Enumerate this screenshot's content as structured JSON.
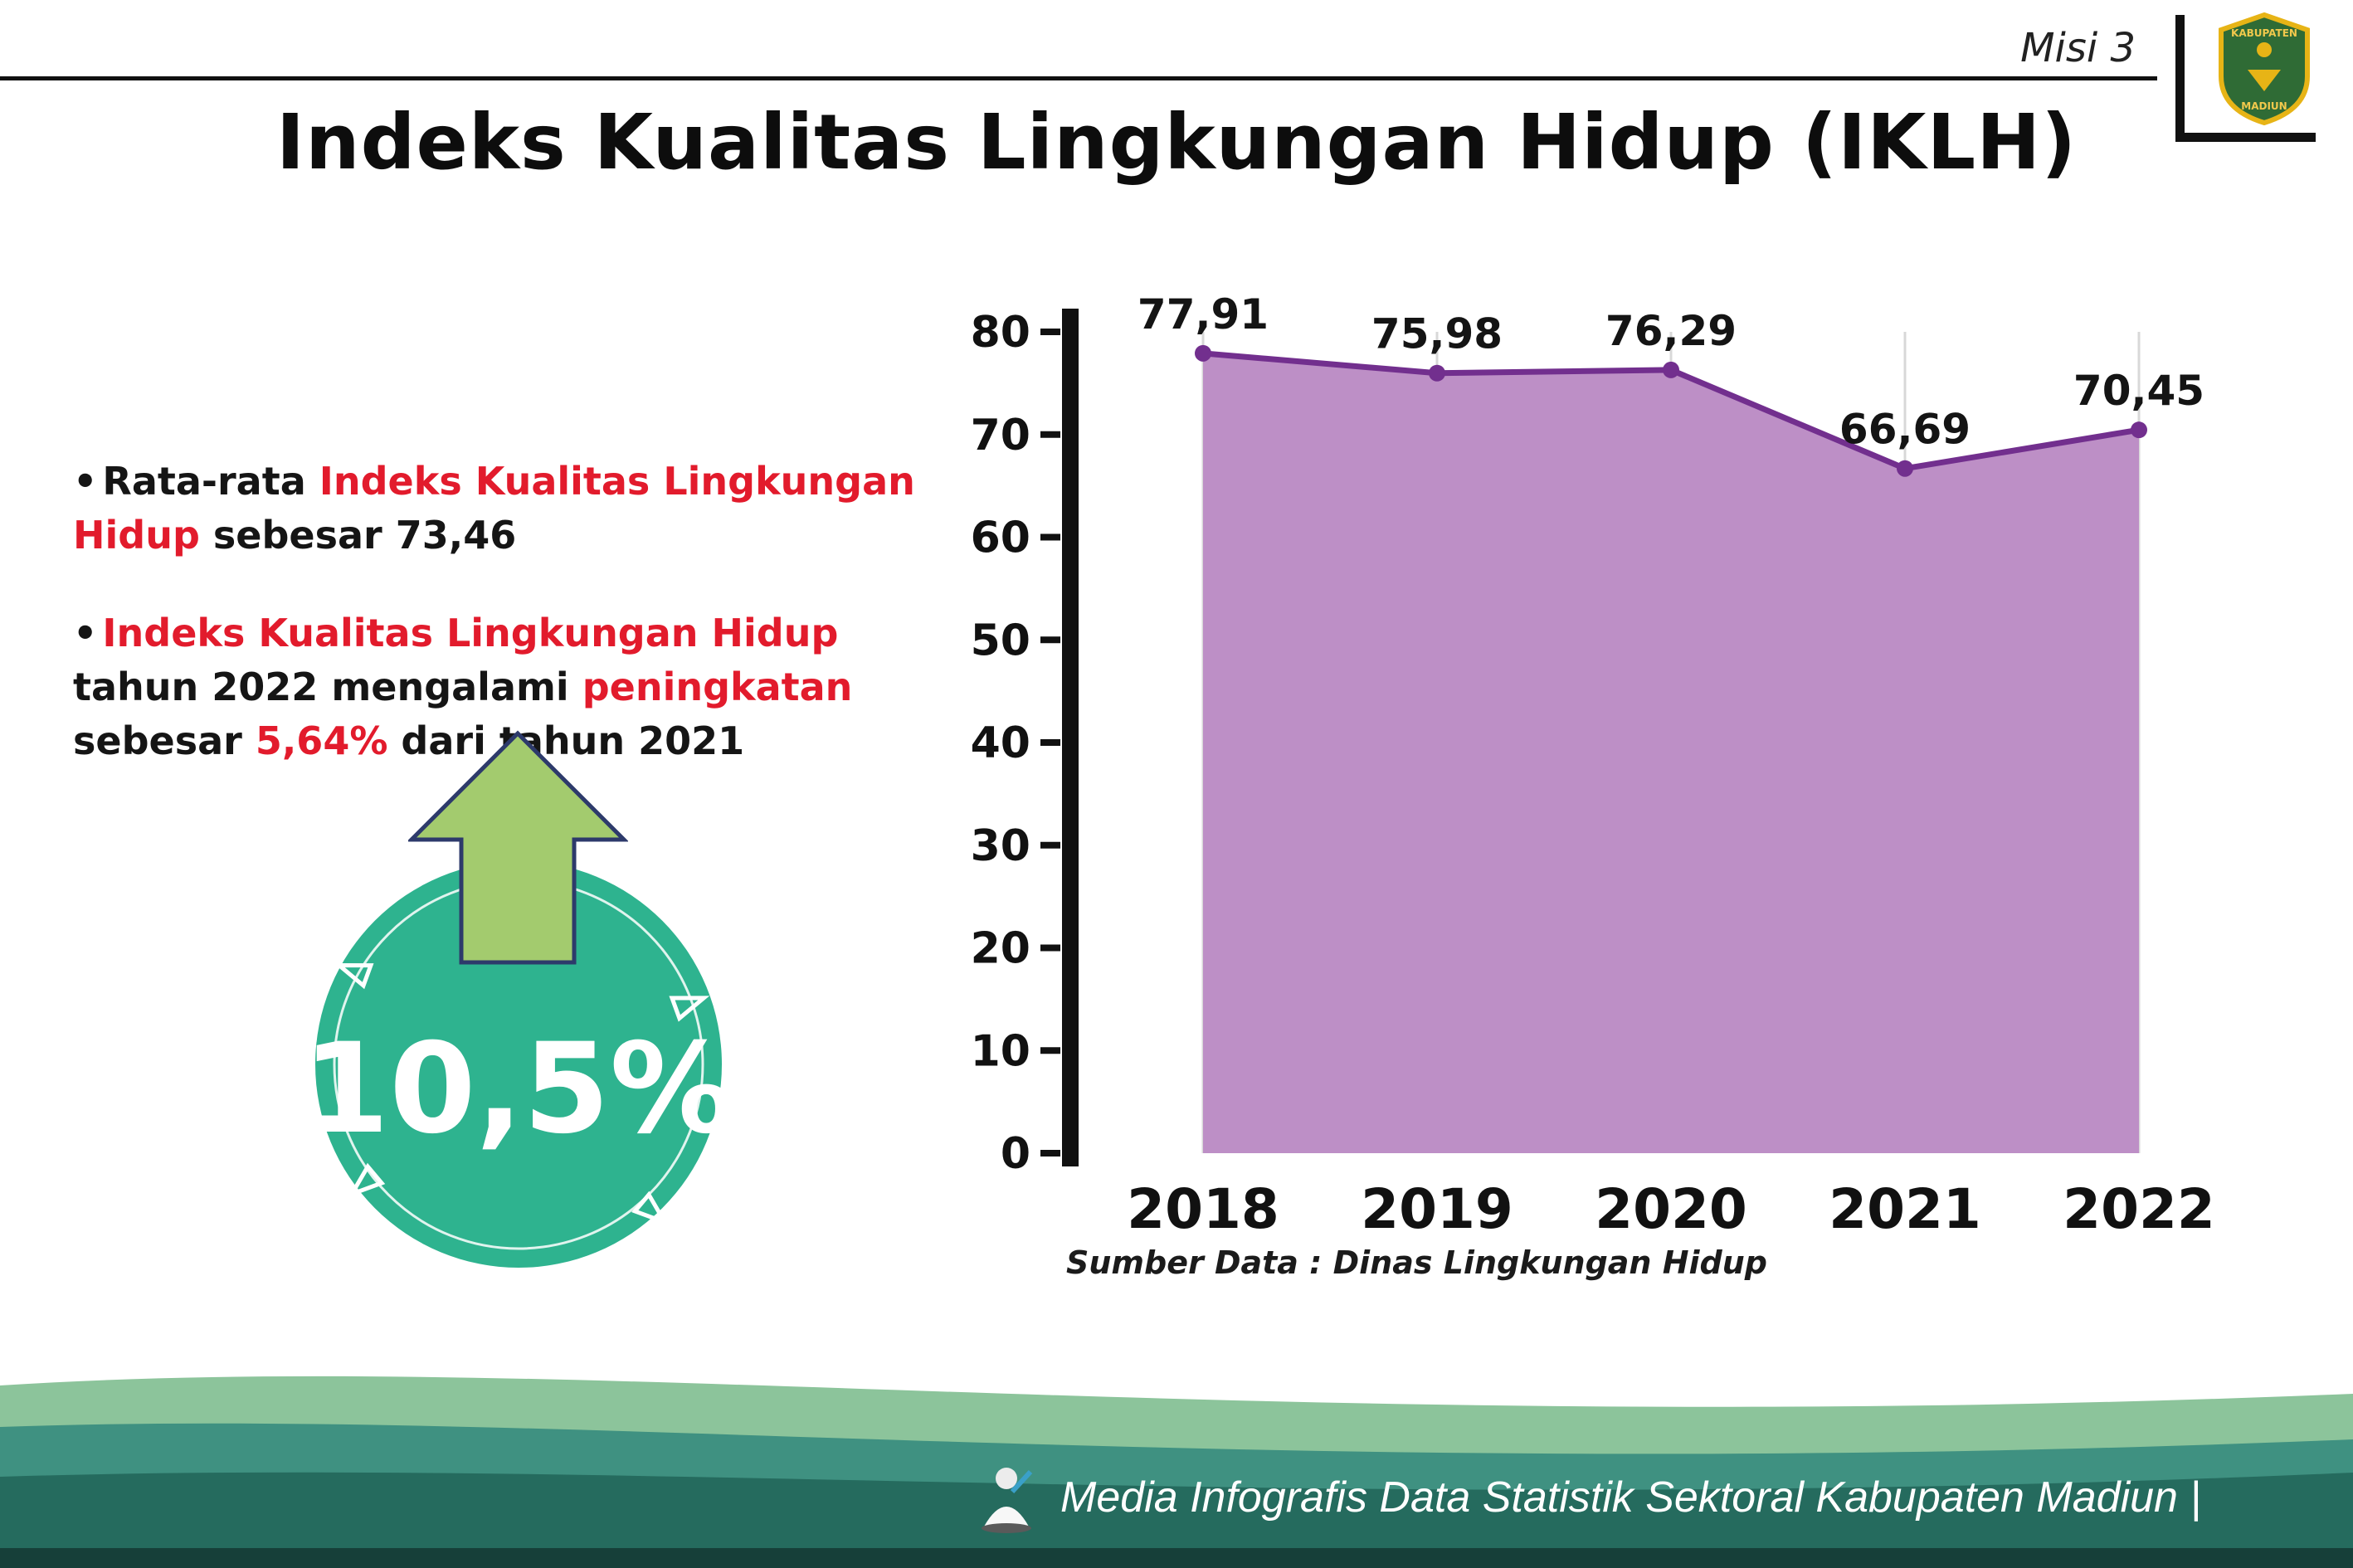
{
  "header": {
    "misi": "Misi 3",
    "title": "Indeks Kualitas Lingkungan Hidup (IKLH)",
    "logo": {
      "line1": "KABUPATEN",
      "line2": "MADIUN"
    }
  },
  "bullets": [
    {
      "segments": [
        {
          "text": "Rata-rata ",
          "red": false
        },
        {
          "text": "Indeks Kualitas Lingkungan Hidup",
          "red": true
        },
        {
          "text": " sebesar 73,46",
          "red": false
        }
      ]
    },
    {
      "segments": [
        {
          "text": "Indeks Kualitas Lingkungan Hidup",
          "red": true
        },
        {
          "text": " tahun 2022 mengalami ",
          "red": false
        },
        {
          "text": "peningkatan",
          "red": true
        },
        {
          "text": " sebesar ",
          "red": false
        },
        {
          "text": "5,64%",
          "red": true
        },
        {
          "text": " dari tahun 2021",
          "red": false
        }
      ]
    }
  ],
  "badge": {
    "value": "10,5%"
  },
  "chart_data": {
    "type": "area",
    "categories": [
      "2018",
      "2019",
      "2020",
      "2021",
      "2022"
    ],
    "values": [
      77.91,
      75.98,
      76.29,
      66.69,
      70.45
    ],
    "labels": [
      "77,91",
      "75,98",
      "76,29",
      "66,69",
      "70,45"
    ],
    "title": "Indeks Kualitas Lingkungan Hidup (IKLH)",
    "xlabel": "",
    "ylabel": "",
    "ylim": [
      0,
      80
    ],
    "ytick_step": 10,
    "grid": "vertical",
    "source": "Sumber Data : Dinas Lingkungan Hidup",
    "colors": {
      "area": "#bd8fc6",
      "line": "#722f8e",
      "marker": "#722f8e",
      "label": "#141414",
      "grid": "#d8d8d8",
      "axis": "#111111"
    }
  },
  "footer": {
    "text": "Media Infografis Data Statistik Sektoral Kabupaten Madiun |"
  },
  "accent_colors": {
    "badge_green": "#2eb38f",
    "arrow_green": "#a3cb6e",
    "red_text": "#e21b2c"
  }
}
